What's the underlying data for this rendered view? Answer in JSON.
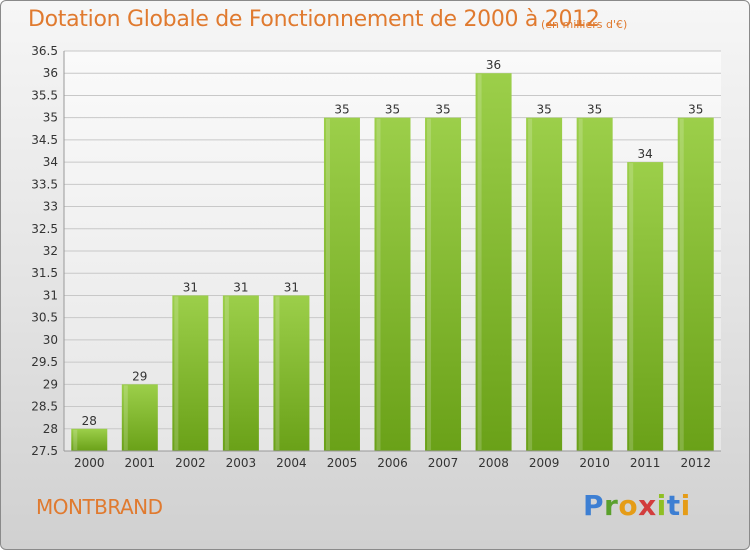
{
  "header": {
    "title": "Dotation Globale de Fonctionnement de 2000 à 2012",
    "unit_note": "(en milliers d'€)"
  },
  "footer": {
    "commune": "MONTBRAND",
    "logo_text": "Proxiti",
    "logo_colors": [
      "#3d7fd3",
      "#5aa02c",
      "#e59c17",
      "#d23d3d",
      "#8fbf23",
      "#3d7fd3",
      "#e59c17"
    ]
  },
  "colors": {
    "title": "#e07a2f",
    "bar_light": "#9ccf4a",
    "bar_dark": "#6aa118",
    "grid": "#c8c8c8",
    "axis_text": "#333333"
  },
  "chart_data": {
    "type": "bar",
    "categories": [
      "2000",
      "2001",
      "2002",
      "2003",
      "2004",
      "2005",
      "2006",
      "2007",
      "2008",
      "2009",
      "2010",
      "2011",
      "2012"
    ],
    "values": [
      28,
      29,
      31,
      31,
      31,
      35,
      35,
      35,
      36,
      35,
      35,
      34,
      35
    ],
    "data_labels": [
      "28",
      "29",
      "31",
      "31",
      "31",
      "35",
      "35",
      "35",
      "36",
      "35",
      "35",
      "34",
      "35"
    ],
    "ylim": [
      27.5,
      36.5
    ],
    "yticks": [
      27.5,
      28,
      28.5,
      29,
      29.5,
      30,
      30.5,
      31,
      31.5,
      32,
      32.5,
      33,
      33.5,
      34,
      34.5,
      35,
      35.5,
      36,
      36.5
    ],
    "ytick_labels": [
      "27.5",
      "28",
      "28.5",
      "29",
      "29.5",
      "30",
      "30.5",
      "31",
      "31.5",
      "32",
      "32.5",
      "33",
      "33.5",
      "34",
      "34.5",
      "35",
      "35.5",
      "36",
      "36.5"
    ],
    "grid": true,
    "title": "Dotation Globale de Fonctionnement de 2000 à 2012",
    "xlabel": "",
    "ylabel": ""
  }
}
